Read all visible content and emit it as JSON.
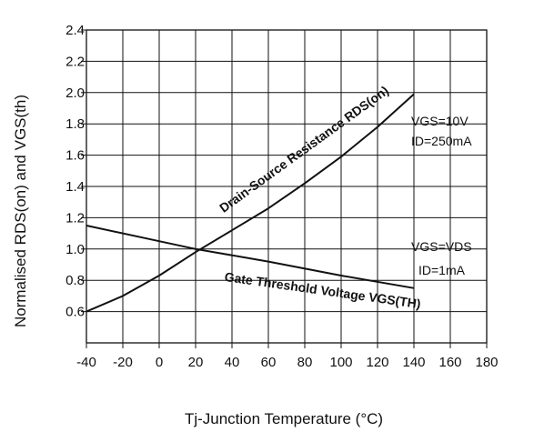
{
  "chart_data": {
    "type": "line",
    "title": "",
    "xlabel": "Tj-Junction Temperature (°C)",
    "ylabel": "Normalised RDS(on) and VGS(th)",
    "xlim": [
      -40,
      180
    ],
    "ylim": [
      0.4,
      2.4
    ],
    "x_ticks": [
      -40,
      -20,
      0,
      20,
      40,
      60,
      80,
      100,
      120,
      140,
      160,
      180
    ],
    "y_ticks": [
      0.6,
      0.8,
      1.0,
      1.2,
      1.4,
      1.6,
      1.8,
      2.0,
      2.2,
      2.4
    ],
    "y_tick_labels": [
      "0.6",
      "0.8",
      "1.0",
      "1.2",
      "1.4",
      "1.6",
      "1.8",
      "2.0",
      "2.2",
      "2.4"
    ],
    "grid": true,
    "series": [
      {
        "name": "Drain-Source Resistance RDS(on)",
        "conditions": [
          "VGS=10V",
          "ID=250mA"
        ],
        "x": [
          -40,
          -20,
          0,
          20,
          40,
          60,
          80,
          100,
          120,
          140
        ],
        "y": [
          0.6,
          0.7,
          0.83,
          0.98,
          1.12,
          1.26,
          1.42,
          1.59,
          1.78,
          1.99
        ]
      },
      {
        "name": "Gate Threshold Voltage VGS(TH)",
        "conditions": [
          "VGS=VDS",
          "ID=1mA"
        ],
        "x": [
          -40,
          0,
          20,
          60,
          100,
          140
        ],
        "y": [
          1.15,
          1.05,
          1.0,
          0.92,
          0.83,
          0.75
        ]
      }
    ]
  }
}
